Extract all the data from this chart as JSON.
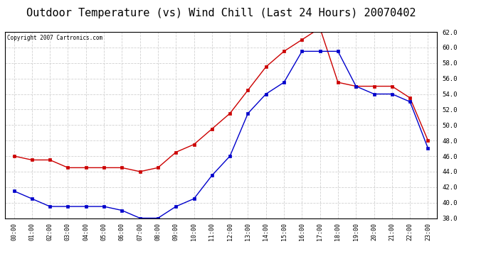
{
  "title": "Outdoor Temperature (vs) Wind Chill (Last 24 Hours) 20070402",
  "copyright_text": "Copyright 2007 Cartronics.com",
  "x_labels": [
    "00:00",
    "01:00",
    "02:00",
    "03:00",
    "04:00",
    "05:00",
    "06:00",
    "07:00",
    "08:00",
    "09:00",
    "10:00",
    "11:00",
    "12:00",
    "13:00",
    "14:00",
    "15:00",
    "16:00",
    "17:00",
    "18:00",
    "19:00",
    "20:00",
    "21:00",
    "22:00",
    "23:00"
  ],
  "outdoor_temp": [
    46.0,
    45.5,
    45.5,
    44.5,
    44.5,
    44.5,
    44.5,
    44.0,
    44.5,
    46.5,
    47.5,
    49.5,
    51.5,
    54.5,
    57.5,
    59.5,
    61.0,
    62.5,
    55.5,
    55.0,
    55.0,
    55.0,
    53.5,
    48.0
  ],
  "wind_chill": [
    41.5,
    40.5,
    39.5,
    39.5,
    39.5,
    39.5,
    39.0,
    38.0,
    38.0,
    39.5,
    40.5,
    43.5,
    46.0,
    51.5,
    54.0,
    55.5,
    59.5,
    59.5,
    59.5,
    55.0,
    54.0,
    54.0,
    53.0,
    47.0
  ],
  "temp_color": "#cc0000",
  "chill_color": "#0000cc",
  "ylim": [
    38.0,
    62.0
  ],
  "yticks": [
    38.0,
    40.0,
    42.0,
    44.0,
    46.0,
    48.0,
    50.0,
    52.0,
    54.0,
    56.0,
    58.0,
    60.0,
    62.0
  ],
  "bg_color": "#ffffff",
  "plot_bg_color": "#ffffff",
  "grid_color": "#cccccc",
  "title_fontsize": 11,
  "marker": "s",
  "marker_size": 2.5,
  "linewidth": 1.0
}
